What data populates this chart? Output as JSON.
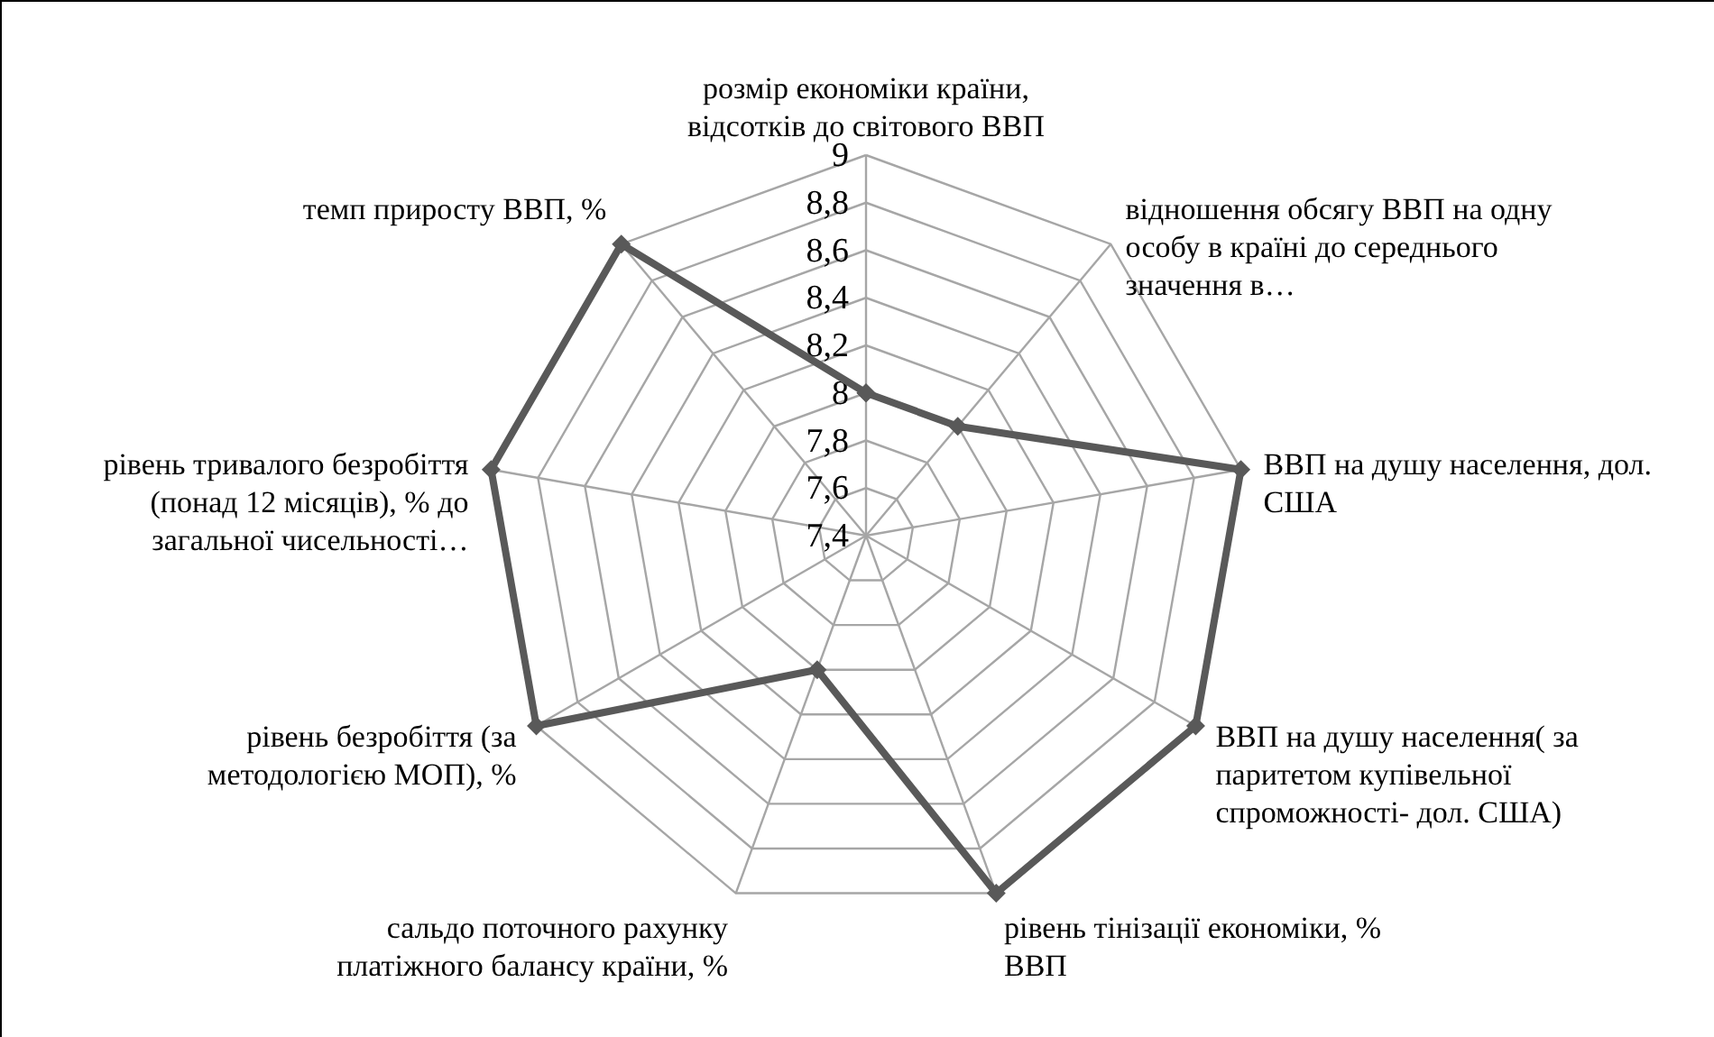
{
  "chart_data": {
    "type": "radar",
    "categories": [
      "розмір економіки країни, відсотків до світового ВВП",
      "відношення обсягу ВВП на одну особу в країні до середнього значення в…",
      "ВВП на душу населення, дол. США",
      "ВВП на душу населення( за паритетом купівельної спроможності- дол. США)",
      "рівень тінізації економіки, % ВВП",
      "сальдо поточного рахунку платіжного балансу країни, %",
      "рівень безробіття (за методологією МОП), %",
      "рівень тривалого безробіття (понад 12 місяців), % до загальної чисельності…",
      "темп приросту ВВП, %"
    ],
    "series": [
      {
        "color": "#595959",
        "values": [
          8.0,
          8.0,
          9.0,
          9.0,
          9.0,
          8.0,
          9.0,
          9.0,
          9.0
        ]
      }
    ],
    "ylim": [
      7.4,
      9
    ],
    "yticks": [
      {
        "value": 7.4,
        "label": "7,4"
      },
      {
        "value": 7.6,
        "label": "7,6"
      },
      {
        "value": 7.8,
        "label": "7,8"
      },
      8,
      {
        "value": 8.2,
        "label": "8,2"
      },
      {
        "value": 8.4,
        "label": "8,4"
      },
      {
        "value": 8.6,
        "label": "8,6"
      },
      {
        "value": 8.8,
        "label": "8,8"
      },
      9
    ],
    "marker": "diamond",
    "grid": true
  }
}
